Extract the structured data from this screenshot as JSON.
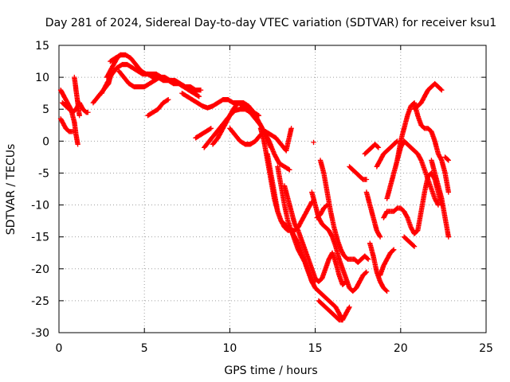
{
  "chart_data": {
    "type": "scatter",
    "title": "Day 281 of 2024, Sidereal Day-to-day VTEC variation (SDTVAR) for receiver ksu1",
    "xlabel": "GPS time / hours",
    "ylabel": "SDTVAR / TECUs",
    "xlim": [
      0,
      25
    ],
    "ylim": [
      -30,
      15
    ],
    "x_ticks": [
      "0",
      "5",
      "10",
      "15",
      "20",
      "25"
    ],
    "y_ticks": [
      "15",
      "10",
      "5",
      "0",
      "-5",
      "-10",
      "-15",
      "-20",
      "-25",
      "-30"
    ],
    "grid": true,
    "marker": "+",
    "color": "#ff0000",
    "series": [
      {
        "name": "arc01",
        "x": [
          0.1,
          0.3,
          0.5,
          0.7,
          0.9,
          1.0,
          1.1
        ],
        "y": [
          8,
          7,
          6,
          5,
          3,
          1,
          -0.5
        ]
      },
      {
        "name": "arc02",
        "x": [
          0.1,
          0.2,
          0.4,
          0.6,
          0.8
        ],
        "y": [
          3.5,
          3,
          2,
          1.5,
          1.5
        ]
      },
      {
        "name": "arc03",
        "x": [
          0.2,
          0.4,
          0.6,
          0.8,
          1.0,
          1.2,
          1.4,
          1.6,
          1.7
        ],
        "y": [
          6,
          5.5,
          5,
          4.5,
          5,
          6,
          5,
          4.5,
          4.5
        ]
      },
      {
        "name": "arc04",
        "x": [
          0.9,
          1.0,
          1.1,
          1.2
        ],
        "y": [
          10,
          8,
          6,
          4
        ]
      },
      {
        "name": "arc05",
        "x": [
          2.0,
          2.3,
          2.6,
          2.9,
          3.0
        ],
        "y": [
          6,
          7,
          8,
          9,
          10
        ]
      },
      {
        "name": "arc06",
        "x": [
          2.5,
          2.8,
          3.1,
          3.4,
          3.7,
          4.0,
          4.3,
          4.6,
          4.9,
          5.2,
          5.5,
          5.8,
          6.1,
          6.4,
          6.7,
          7.0,
          7.3,
          7.6,
          7.9,
          8.2
        ],
        "y": [
          7.5,
          9,
          10.5,
          11.5,
          12,
          12,
          11.5,
          11,
          10.5,
          10.5,
          10,
          10,
          9.5,
          9.5,
          9,
          9,
          8.5,
          8,
          7.5,
          7
        ]
      },
      {
        "name": "arc07",
        "x": [
          3.0,
          3.3,
          3.6,
          3.9,
          4.2,
          4.5,
          4.8,
          5.1,
          5.4,
          5.7,
          6.0
        ],
        "y": [
          12.5,
          13,
          13.5,
          13.5,
          13,
          12,
          11,
          10.5,
          10.5,
          10.5,
          10
        ]
      },
      {
        "name": "arc08",
        "x": [
          3.5,
          3.8,
          4.1,
          4.4,
          4.7,
          5.0,
          5.3,
          5.6,
          5.9,
          6.2,
          6.5,
          6.8,
          7.1,
          7.4,
          7.7,
          8.0,
          8.3
        ],
        "y": [
          11,
          10,
          9,
          8.5,
          8.5,
          8.5,
          9,
          9.5,
          10,
          10,
          9.5,
          9.5,
          9,
          8.5,
          8.5,
          8,
          8
        ]
      },
      {
        "name": "arc09",
        "x": [
          2.8,
          3.0,
          3.2,
          3.4,
          3.6
        ],
        "y": [
          10,
          11,
          12,
          13,
          13.5
        ]
      },
      {
        "name": "arc10",
        "x": [
          5.2,
          5.5,
          5.8,
          6.1,
          6.4
        ],
        "y": [
          4,
          4.5,
          5,
          6,
          6.5
        ]
      },
      {
        "name": "arc11",
        "x": [
          7.2,
          7.5,
          7.8,
          8.1,
          8.4,
          8.7,
          9.0,
          9.3,
          9.6,
          9.9,
          10.2,
          10.5,
          10.8,
          11.1,
          11.4,
          11.7
        ],
        "y": [
          7.5,
          7,
          6.5,
          6,
          5.5,
          5.2,
          5.5,
          6,
          6.5,
          6.5,
          6,
          6,
          5.5,
          5,
          4.5,
          4
        ]
      },
      {
        "name": "arc12",
        "x": [
          8.5,
          8.8,
          9.1,
          9.4,
          9.7,
          10.0,
          10.3,
          10.6,
          10.9,
          11.2,
          11.5,
          11.8,
          12.1,
          12.4
        ],
        "y": [
          -1,
          0,
          1,
          2,
          3,
          4,
          4.8,
          5,
          5,
          4.5,
          3.5,
          2.5,
          1,
          -1
        ]
      },
      {
        "name": "arc13",
        "x": [
          8.0,
          8.3,
          8.6,
          8.9
        ],
        "y": [
          0.5,
          1,
          1.5,
          2
        ]
      },
      {
        "name": "arc14",
        "x": [
          9.0,
          9.3,
          9.6,
          9.9,
          10.2,
          10.5,
          10.8,
          11.1,
          11.4,
          11.7,
          12.0,
          12.3,
          12.6,
          12.9,
          13.2,
          13.5
        ],
        "y": [
          -0.5,
          0.5,
          2,
          3.5,
          5,
          6,
          6,
          5.5,
          4.5,
          3,
          1.5,
          0,
          -2,
          -3.5,
          -4,
          -4.5
        ]
      },
      {
        "name": "arc15",
        "x": [
          10.0,
          10.3,
          10.6,
          10.9,
          11.2,
          11.5,
          11.8,
          12.1,
          12.4,
          12.7,
          13.0,
          13.3,
          13.6
        ],
        "y": [
          2,
          1,
          0,
          -0.5,
          -0.5,
          0,
          1,
          1.5,
          1,
          0.5,
          -0.5,
          -1.5,
          2
        ]
      },
      {
        "name": "arc16",
        "x": [
          11.8,
          12.0,
          12.2,
          12.4,
          12.6,
          12.8,
          13.0,
          13.2,
          13.4,
          13.6,
          13.8,
          14.0,
          14.2,
          14.4,
          14.6,
          14.8
        ],
        "y": [
          2,
          0,
          -3,
          -6,
          -9,
          -11,
          -12.5,
          -13.5,
          -14,
          -14,
          -14,
          -13.5,
          -12.5,
          -11.5,
          -10.5,
          -9.5
        ]
      },
      {
        "name": "arc17",
        "x": [
          12.2,
          12.4,
          12.6,
          12.8,
          13.0,
          13.2,
          13.4,
          13.6,
          13.8,
          14.0,
          14.2,
          14.4,
          14.6,
          14.8,
          15.0
        ],
        "y": [
          -2,
          -5,
          -8,
          -11,
          -12.5,
          -13,
          -13.5,
          -14,
          -15,
          -16,
          -17.5,
          -19,
          -20.5,
          -22,
          -22
        ]
      },
      {
        "name": "arc18",
        "x": [
          12.8,
          13.0,
          13.2,
          13.4,
          13.6,
          13.8,
          14.0,
          14.2,
          14.4,
          14.6,
          14.8,
          15.0,
          15.2,
          15.4,
          15.6,
          15.8,
          16.0,
          16.2,
          16.4,
          16.6,
          16.8,
          17.0
        ],
        "y": [
          -4,
          -7,
          -10,
          -12.5,
          -14,
          -15.5,
          -17,
          -18,
          -19,
          -20.5,
          -22,
          -23,
          -23.5,
          -24,
          -24.5,
          -25,
          -25.5,
          -26,
          -27,
          -28,
          -27,
          -26
        ]
      },
      {
        "name": "arc19",
        "x": [
          13.2,
          13.4,
          13.6,
          13.8,
          14.0,
          14.2,
          14.4,
          14.6,
          14.8,
          15.0,
          15.2,
          15.4,
          15.6,
          15.8,
          16.0,
          16.2,
          16.4,
          16.6,
          16.8
        ],
        "y": [
          -7,
          -9,
          -11,
          -13,
          -14,
          -15.5,
          -17,
          -18.5,
          -20,
          -21.5,
          -22,
          -21.5,
          -20,
          -18.5,
          -17.5,
          -19,
          -21,
          -22.5,
          -22
        ]
      },
      {
        "name": "arc20",
        "x": [
          14.8,
          15.0,
          15.2,
          15.4,
          15.6,
          15.8,
          16.0,
          16.2,
          16.4,
          16.6,
          16.8,
          17.0,
          17.2,
          17.4,
          17.6,
          17.8,
          18.0
        ],
        "y": [
          -8,
          -10,
          -12,
          -13,
          -13.5,
          -14,
          -15,
          -16.5,
          -18.5,
          -20,
          -21.5,
          -23,
          -23.5,
          -23,
          -22,
          -21,
          -20.5
        ]
      },
      {
        "name": "arc21",
        "x": [
          15.3,
          15.5,
          15.7,
          15.9,
          16.1,
          16.3,
          16.5,
          16.7,
          16.9,
          17.1,
          17.3,
          17.5,
          17.7,
          17.9,
          18.1
        ],
        "y": [
          -3,
          -5,
          -8,
          -11,
          -13.5,
          -15.5,
          -17,
          -18,
          -18.5,
          -18.5,
          -18.5,
          -19,
          -18.5,
          -18,
          -18.5
        ]
      },
      {
        "name": "arc22",
        "x": [
          15.2,
          15.4,
          15.6,
          15.8,
          16.0,
          16.2,
          16.4,
          16.6
        ],
        "y": [
          -25,
          -25.5,
          -26,
          -26.5,
          -27,
          -27.5,
          -28,
          -28
        ]
      },
      {
        "name": "arc23",
        "x": [
          15.1,
          15.3,
          15.5,
          15.7
        ],
        "y": [
          -12,
          -11.5,
          -10.5,
          -10
        ]
      },
      {
        "name": "arc24",
        "x": [
          17.0,
          17.2,
          17.4,
          17.6,
          17.8,
          18.0
        ],
        "y": [
          -4,
          -4.5,
          -5,
          -5.5,
          -6,
          -6
        ]
      },
      {
        "name": "arc25",
        "x": [
          18.0,
          18.2,
          18.4,
          18.6,
          18.8
        ],
        "y": [
          -8,
          -10,
          -12,
          -14,
          -15
        ]
      },
      {
        "name": "arc26",
        "x": [
          18.2,
          18.4,
          18.6,
          18.8,
          19.0,
          19.2
        ],
        "y": [
          -16,
          -18,
          -20.5,
          -22,
          -23,
          -23.5
        ]
      },
      {
        "name": "arc27",
        "x": [
          18.6,
          18.8,
          19.0,
          19.2,
          19.4,
          19.6,
          19.8
        ],
        "y": [
          -4,
          -3,
          -2,
          -1.5,
          -1,
          -0.5,
          0
        ]
      },
      {
        "name": "arc28",
        "x": [
          19.0,
          19.2,
          19.4,
          19.6,
          19.8,
          20.0,
          20.2,
          20.4,
          20.6,
          20.8,
          21.0,
          21.2,
          21.4,
          21.6,
          21.8,
          22.0,
          22.2,
          22.4
        ],
        "y": [
          -12,
          -11,
          -11,
          -11,
          -10.5,
          -10.5,
          -11,
          -12,
          -13.5,
          -14.5,
          -14,
          -11,
          -8,
          -5.5,
          -5,
          -6,
          -8,
          -10
        ]
      },
      {
        "name": "arc29",
        "x": [
          19.2,
          19.4,
          19.6,
          19.8,
          20.0,
          20.2,
          20.4,
          20.6,
          20.8,
          21.0,
          21.2,
          21.4,
          21.6,
          21.8,
          22.0,
          22.2
        ],
        "y": [
          -9,
          -7,
          -5,
          -3,
          -1,
          0,
          -0.5,
          -1,
          -1.5,
          -2,
          -3,
          -4.5,
          -6,
          -7.5,
          -9,
          -10
        ]
      },
      {
        "name": "arc30",
        "x": [
          19.8,
          20.0,
          20.2,
          20.4,
          20.6,
          20.8,
          21.0,
          21.2,
          21.4,
          21.6,
          21.8,
          22.0,
          22.2,
          22.4
        ],
        "y": [
          -3,
          0,
          2,
          4,
          5.5,
          6,
          4,
          2.5,
          2,
          2,
          1.5,
          0,
          -2,
          -3
        ]
      },
      {
        "name": "arc31",
        "x": [
          20.8,
          21.0,
          21.2,
          21.4,
          21.6,
          21.8,
          22.0,
          22.2,
          22.4
        ],
        "y": [
          5,
          5.5,
          6,
          7,
          8,
          8.5,
          9,
          8.5,
          8
        ]
      },
      {
        "name": "arc32",
        "x": [
          21.8,
          22.0,
          22.2,
          22.4,
          22.6,
          22.8
        ],
        "y": [
          -3,
          -5,
          -7,
          -9,
          -12,
          -15
        ]
      },
      {
        "name": "arc33",
        "x": [
          22.4,
          22.6,
          22.8
        ],
        "y": [
          -3,
          -5,
          -8
        ]
      },
      {
        "name": "arc34",
        "x": [
          22.6,
          22.8
        ],
        "y": [
          -2.5,
          -3
        ]
      },
      {
        "name": "arc35",
        "x": [
          17.9,
          18.1,
          18.3,
          18.5,
          18.7
        ],
        "y": [
          -2,
          -1.5,
          -1,
          -0.5,
          -1
        ]
      },
      {
        "name": "arc36",
        "x": [
          18.8,
          19.0,
          19.2,
          19.4,
          19.6
        ],
        "y": [
          -21,
          -19.5,
          -18.5,
          -17.5,
          -17
        ]
      },
      {
        "name": "arc37",
        "x": [
          20.2,
          20.4,
          20.6,
          20.8
        ],
        "y": [
          -15,
          -15.5,
          -16,
          -16.5
        ]
      },
      {
        "name": "arc38",
        "x": [
          14.9
        ],
        "y": [
          -0.2
        ]
      }
    ]
  }
}
